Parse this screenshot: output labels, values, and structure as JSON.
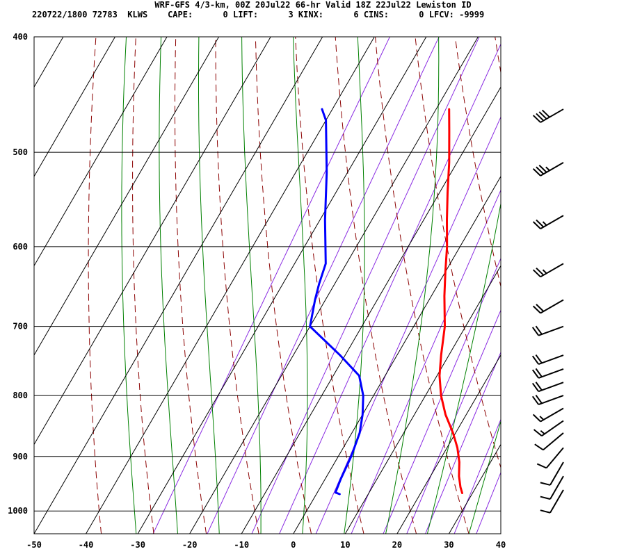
{
  "header": {
    "line1": "WRF-GFS 4/3-km, 00Z 20Jul22 66-hr Valid 18Z 22Jul22 Lewiston ID",
    "line2": "220722/1800 72783  KLWS    CAPE:      0 LIFT:      3 KINX:      6 CINS:      0 LFCV: -9999"
  },
  "chart_data": {
    "type": "line",
    "title": "WRF-GFS 4/3-km, 00Z 20Jul22 66-hr Valid 18Z 22Jul22 Lewiston ID",
    "xlabel": "",
    "ylabel": "",
    "xlim": [
      -50,
      40
    ],
    "ylim": [
      1045,
      400
    ],
    "y_scale": "log",
    "grid": true,
    "x_ticks": [
      -50,
      -40,
      -30,
      -20,
      -10,
      0,
      10,
      20,
      30,
      40
    ],
    "y_ticks": [
      400,
      500,
      600,
      700,
      800,
      900,
      1000
    ],
    "colors": {
      "temperature": "#ff0000",
      "dewpoint": "#0000ff",
      "dry_adiabat": "#8b0000",
      "moist_adiabat": "#008000",
      "mixing_ratio": "#8a2be2",
      "grid": "#000000"
    },
    "series": [
      {
        "role": "temperature",
        "pressure": [
          966,
          955,
          935,
          910,
          885,
          860,
          830,
          800,
          770,
          740,
          700,
          660,
          630,
          600,
          570,
          540,
          510,
          480,
          460
        ],
        "values": [
          28,
          27,
          25.5,
          24,
          22,
          19.5,
          16,
          13,
          10.5,
          8.5,
          6,
          2.5,
          0,
          -2.5,
          -5.5,
          -8.5,
          -11.5,
          -15,
          -17.5
        ]
      },
      {
        "role": "dewpoint",
        "pressure": [
          968,
          965,
          940,
          900,
          860,
          830,
          800,
          770,
          740,
          700,
          665,
          645,
          620,
          570,
          520,
          470,
          460
        ],
        "values": [
          4.5,
          3.5,
          3,
          2.5,
          1.5,
          0,
          -2,
          -5,
          -11,
          -20,
          -22,
          -23,
          -24,
          -29,
          -34,
          -40,
          -42
        ]
      }
    ],
    "wind_barbs": [
      {
        "pressure": 460,
        "direction": 240,
        "speed": 40
      },
      {
        "pressure": 510,
        "direction": 240,
        "speed": 35
      },
      {
        "pressure": 565,
        "direction": 240,
        "speed": 25
      },
      {
        "pressure": 620,
        "direction": 240,
        "speed": 25
      },
      {
        "pressure": 665,
        "direction": 240,
        "speed": 20
      },
      {
        "pressure": 700,
        "direction": 250,
        "speed": 20
      },
      {
        "pressure": 740,
        "direction": 250,
        "speed": 20
      },
      {
        "pressure": 760,
        "direction": 250,
        "speed": 20
      },
      {
        "pressure": 780,
        "direction": 250,
        "speed": 20
      },
      {
        "pressure": 800,
        "direction": 250,
        "speed": 20
      },
      {
        "pressure": 820,
        "direction": 240,
        "speed": 15
      },
      {
        "pressure": 840,
        "direction": 235,
        "speed": 15
      },
      {
        "pressure": 860,
        "direction": 230,
        "speed": 10
      },
      {
        "pressure": 885,
        "direction": 220,
        "speed": 10
      },
      {
        "pressure": 910,
        "direction": 210,
        "speed": 10
      },
      {
        "pressure": 935,
        "direction": 210,
        "speed": 10
      },
      {
        "pressure": 960,
        "direction": 210,
        "speed": 10
      }
    ]
  }
}
